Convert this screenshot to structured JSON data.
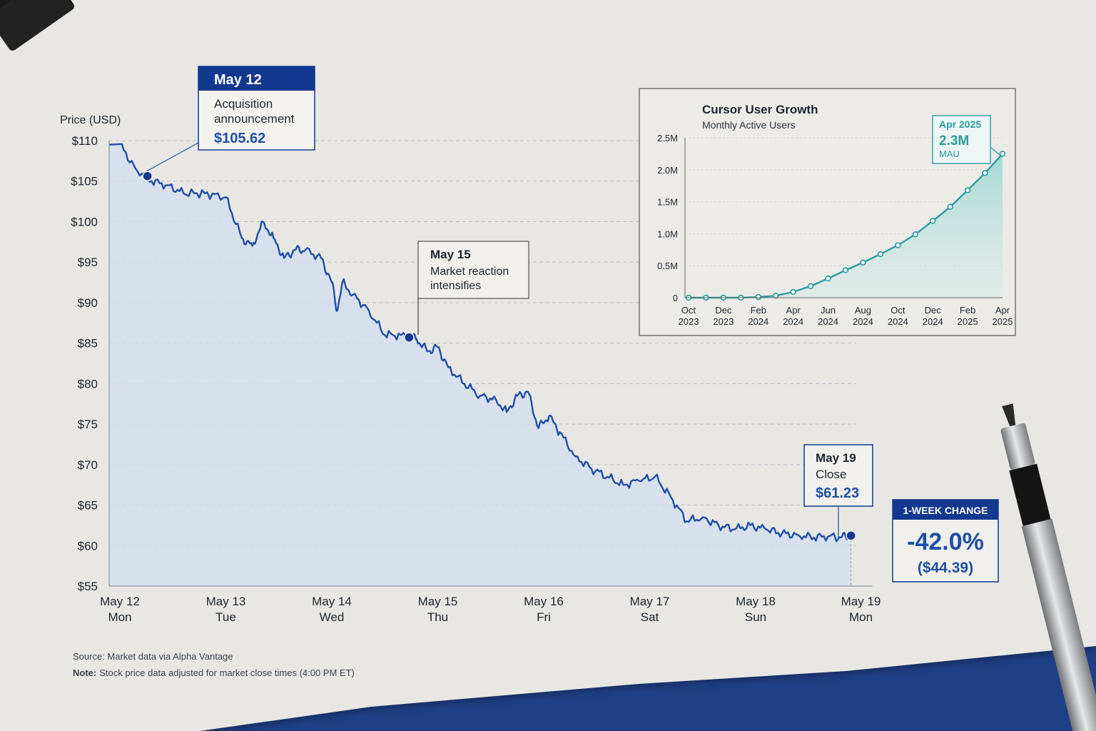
{
  "main_chart": {
    "y_axis_title": "Price (USD)",
    "y_ticks": [
      {
        "value": 110,
        "label": "$110"
      },
      {
        "value": 105,
        "label": "$105"
      },
      {
        "value": 100,
        "label": "$100"
      },
      {
        "value": 95,
        "label": "$95"
      },
      {
        "value": 90,
        "label": "$90"
      },
      {
        "value": 85,
        "label": "$85"
      },
      {
        "value": 80,
        "label": "$80"
      },
      {
        "value": 75,
        "label": "$75"
      },
      {
        "value": 70,
        "label": "$70"
      },
      {
        "value": 65,
        "label": "$65"
      },
      {
        "value": 60,
        "label": "$60"
      },
      {
        "value": 55,
        "label": "$55"
      }
    ],
    "x_ticks": [
      {
        "day": 0,
        "date": "May 12",
        "weekday": "Mon"
      },
      {
        "day": 1,
        "date": "May 13",
        "weekday": "Tue"
      },
      {
        "day": 2,
        "date": "May 14",
        "weekday": "Wed"
      },
      {
        "day": 3,
        "date": "May 15",
        "weekday": "Thu"
      },
      {
        "day": 4,
        "date": "May 16",
        "weekday": "Fri"
      },
      {
        "day": 5,
        "date": "May 17",
        "weekday": "Sat"
      },
      {
        "day": 6,
        "date": "May 18",
        "weekday": "Sun"
      },
      {
        "day": 7,
        "date": "May 19",
        "weekday": "Mon"
      }
    ]
  },
  "annotations": {
    "start": {
      "header": "May 12",
      "line1": "Acquisition",
      "line2": "announcement",
      "value": "$105.62"
    },
    "mid": {
      "header": "May 15",
      "line1": "Market reaction",
      "line2": "intensifies"
    },
    "end": {
      "header": "May 19",
      "line1": "Close",
      "value": "$61.23"
    }
  },
  "change_box": {
    "title": "1-WEEK CHANGE",
    "percent": "-42.0%",
    "amount": "($44.39)"
  },
  "inset": {
    "title": "Cursor User Growth",
    "subtitle": "Monthly Active Users",
    "y_ticks": [
      {
        "value": 2.5,
        "label": "2.5M"
      },
      {
        "value": 2.0,
        "label": "2.0M"
      },
      {
        "value": 1.5,
        "label": "1.5M"
      },
      {
        "value": 1.0,
        "label": "1.0M"
      },
      {
        "value": 0.5,
        "label": "0.5M"
      },
      {
        "value": 0,
        "label": "0"
      }
    ],
    "x_ticks": [
      {
        "index": 0,
        "month": "Oct",
        "year": "2023"
      },
      {
        "index": 2,
        "month": "Dec",
        "year": "2023"
      },
      {
        "index": 4,
        "month": "Feb",
        "year": "2024"
      },
      {
        "index": 6,
        "month": "Apr",
        "year": "2024"
      },
      {
        "index": 8,
        "month": "Jun",
        "year": "2024"
      },
      {
        "index": 10,
        "month": "Aug",
        "year": "2024"
      },
      {
        "index": 12,
        "month": "Oct",
        "year": "2024"
      },
      {
        "index": 14,
        "month": "Dec",
        "year": "2024"
      },
      {
        "index": 16,
        "month": "Feb",
        "year": "2025"
      },
      {
        "index": 18,
        "month": "Apr",
        "year": "2025"
      }
    ],
    "callout": {
      "period": "Apr 2025",
      "value": "2.3M",
      "unit": "MAU"
    }
  },
  "footer": {
    "source": "Source: Market data via Alpha Vantage",
    "note_label": "Note:",
    "note_text": "Stock price data adjusted for market close times (4:00 PM ET)"
  },
  "colors": {
    "price_line": "#1f4fa6",
    "area_fill": "#d5e0ef",
    "teal": "#2a9d9e",
    "navy": "#12388f",
    "paper": "#e9e8e4"
  },
  "chart_data": [
    {
      "type": "line",
      "xlabel": "",
      "ylabel": "Price (USD)",
      "ylim": [
        55,
        110
      ],
      "x_unit": "days since May 12",
      "x": [
        0,
        0.15,
        0.3,
        0.45,
        0.6,
        0.8,
        1.0,
        1.15,
        1.25,
        1.35,
        1.45,
        1.55,
        1.65,
        1.75,
        1.9,
        2.0,
        2.05,
        2.1,
        2.2,
        2.35,
        2.5,
        2.65,
        2.75,
        2.8,
        2.9,
        3.0,
        3.1,
        3.25,
        3.4,
        3.55,
        3.65,
        3.75,
        3.85,
        3.95,
        4.05,
        4.15,
        4.3,
        4.45,
        4.6,
        4.75,
        4.9,
        5.05,
        5.2,
        5.35,
        5.5,
        5.65,
        5.8,
        5.95,
        6.1,
        6.25,
        6.4,
        6.55,
        6.7,
        6.8,
        6.9
      ],
      "y": [
        109.5,
        106.5,
        105.0,
        104.5,
        103.5,
        103.5,
        103.0,
        98.0,
        97.0,
        100.0,
        98.0,
        95.5,
        96.5,
        96.5,
        95.5,
        92.5,
        89.0,
        92.5,
        91.0,
        89.0,
        86.0,
        86.0,
        85.7,
        85.5,
        84.0,
        84.5,
        82.0,
        80.0,
        78.5,
        78.0,
        76.5,
        78.5,
        79.0,
        74.5,
        76.0,
        74.0,
        71.0,
        69.5,
        68.5,
        67.5,
        68.0,
        68.5,
        66.0,
        63.0,
        63.5,
        62.5,
        62.0,
        62.5,
        62.0,
        61.5,
        61.3,
        61.0,
        61.2,
        61.0,
        61.23
      ],
      "markers": [
        {
          "x": 0.26,
          "y": 105.62,
          "label": "May 12"
        },
        {
          "x": 2.73,
          "y": 85.7,
          "label": "May 15"
        },
        {
          "x": 6.9,
          "y": 61.23,
          "label": "May 19"
        }
      ]
    },
    {
      "type": "area",
      "title": "Cursor User Growth",
      "subtitle": "Monthly Active Users",
      "xlabel": "",
      "ylabel": "",
      "ylim": [
        0,
        2.5
      ],
      "y_unit": "millions of monthly active users",
      "x": [
        "Oct 2023",
        "Nov 2023",
        "Dec 2023",
        "Jan 2024",
        "Feb 2024",
        "Mar 2024",
        "Apr 2024",
        "May 2024",
        "Jun 2024",
        "Jul 2024",
        "Aug 2024",
        "Sep 2024",
        "Oct 2024",
        "Nov 2024",
        "Dec 2024",
        "Jan 2025",
        "Feb 2025",
        "Mar 2025",
        "Apr 2025"
      ],
      "values": [
        0.0,
        0.0,
        0.0,
        0.0,
        0.01,
        0.03,
        0.09,
        0.18,
        0.3,
        0.43,
        0.55,
        0.68,
        0.82,
        0.99,
        1.2,
        1.42,
        1.68,
        1.95,
        2.25
      ]
    }
  ]
}
